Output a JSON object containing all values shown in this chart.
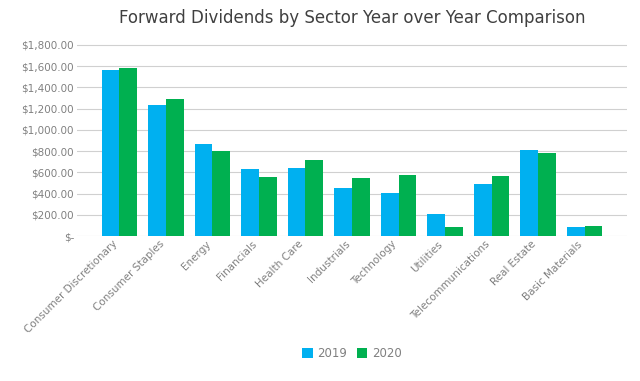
{
  "title": "Forward Dividends by Sector Year over Year Comparison",
  "categories": [
    "Consumer Discretionary",
    "Consumer Staples",
    "Energy",
    "Financials",
    "Health Care",
    "Industrials",
    "Technology",
    "Utilities",
    "Telecommunications",
    "Real Estate",
    "Basic Materials"
  ],
  "values_2019": [
    1560,
    1235,
    870,
    635,
    645,
    455,
    405,
    205,
    495,
    810,
    90
  ],
  "values_2020": [
    1580,
    1295,
    800,
    555,
    720,
    545,
    580,
    85,
    565,
    785,
    100
  ],
  "color_2019": "#00B0F0",
  "color_2020": "#00B050",
  "ylim": [
    0,
    1900
  ],
  "yticks": [
    0,
    200,
    400,
    600,
    800,
    1000,
    1200,
    1400,
    1600,
    1800
  ],
  "legend_labels": [
    "2019",
    "2020"
  ],
  "background_color": "#FFFFFF",
  "grid_color": "#D0D0D0",
  "title_fontsize": 12,
  "tick_fontsize": 7.5,
  "legend_fontsize": 8.5
}
